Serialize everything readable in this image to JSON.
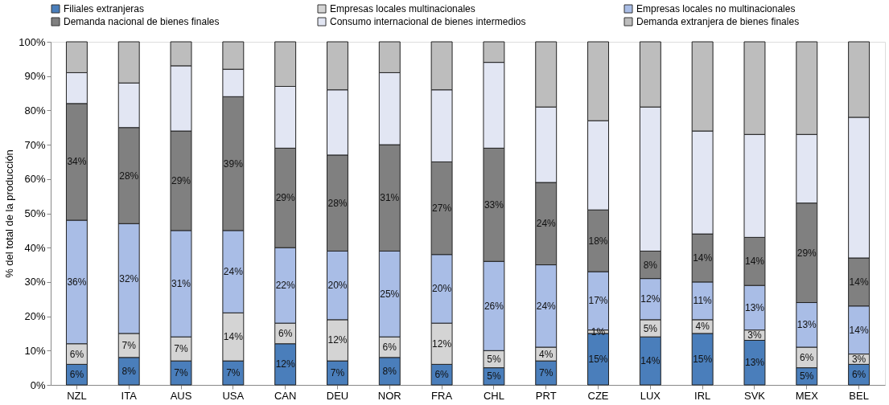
{
  "chart_data": {
    "type": "bar",
    "stacked": true,
    "ylabel": "% del total de la producción",
    "legend": "top",
    "grid": false,
    "categories": [
      "NZL",
      "ITA",
      "AUS",
      "USA",
      "CAN",
      "DEU",
      "NOR",
      "FRA",
      "CHL",
      "PRT",
      "CZE",
      "LUX",
      "IRL",
      "SVK",
      "MEX",
      "BEL"
    ],
    "ylim": [
      0,
      100
    ],
    "yticks": [
      {
        "value": 0,
        "label": "0%"
      },
      {
        "value": 10,
        "label": "10%"
      },
      {
        "value": 20,
        "label": "20%"
      },
      {
        "value": 30,
        "label": "30%"
      },
      {
        "value": 40,
        "label": "40%"
      },
      {
        "value": 50,
        "label": "50%"
      },
      {
        "value": 60,
        "label": "60%"
      },
      {
        "value": 70,
        "label": "70%"
      },
      {
        "value": 80,
        "label": "80%"
      },
      {
        "value": 90,
        "label": "90%"
      },
      {
        "value": 100,
        "label": "100%"
      }
    ],
    "series": [
      {
        "name": "Filiales extranjeras",
        "color": "#4a7ebb",
        "values": [
          6,
          8,
          7,
          7,
          12,
          7,
          8,
          6,
          5,
          7,
          15,
          14,
          15,
          13,
          5,
          6
        ],
        "value_labels": [
          "6%",
          "8%",
          "7%",
          "7%",
          "12%",
          "7%",
          "8%",
          "6%",
          "5%",
          "7%",
          "15%",
          "14%",
          "15%",
          "13%",
          "5%",
          "6%"
        ]
      },
      {
        "name": "Empresas locales multinacionales",
        "color": "#d4d4d4",
        "values": [
          6,
          7,
          7,
          14,
          6,
          12,
          6,
          12,
          5,
          4,
          1,
          5,
          4,
          3,
          6,
          3
        ],
        "value_labels": [
          "6%",
          "7%",
          "7%",
          "14%",
          "6%",
          "12%",
          "6%",
          "12%",
          "5%",
          "4%",
          "1%",
          "5%",
          "4%",
          "3%",
          "6%",
          "3%"
        ]
      },
      {
        "name": "Empresas locales no multinacionales",
        "color": "#a9bde6",
        "values": [
          36,
          32,
          31,
          24,
          22,
          20,
          25,
          20,
          26,
          24,
          17,
          12,
          11,
          13,
          13,
          14
        ],
        "value_labels": [
          "36%",
          "32%",
          "31%",
          "24%",
          "22%",
          "20%",
          "25%",
          "20%",
          "26%",
          "24%",
          "17%",
          "12%",
          "11%",
          "13%",
          "13%",
          "14%"
        ]
      },
      {
        "name": "Demanda nacional de bienes finales",
        "color": "#808080",
        "values": [
          34,
          28,
          29,
          39,
          29,
          28,
          31,
          27,
          33,
          24,
          18,
          8,
          14,
          14,
          29,
          14
        ],
        "value_labels": [
          "34%",
          "28%",
          "29%",
          "39%",
          "29%",
          "28%",
          "31%",
          "27%",
          "33%",
          "24%",
          "18%",
          "8%",
          "14%",
          "14%",
          "29%",
          "14%"
        ]
      },
      {
        "name": "Consumo internacional de bienes intermedios",
        "color": "#e2e6f3",
        "values": [
          9,
          13,
          19,
          8,
          18,
          19,
          21,
          21,
          25,
          22,
          26,
          42,
          30,
          30,
          20,
          41
        ]
      },
      {
        "name": "Demanda extranjera de bienes finales",
        "color": "#bdbdbd",
        "values": [
          9,
          12,
          7,
          8,
          13,
          14,
          9,
          14,
          6,
          19,
          23,
          19,
          26,
          27,
          27,
          22
        ]
      }
    ]
  }
}
